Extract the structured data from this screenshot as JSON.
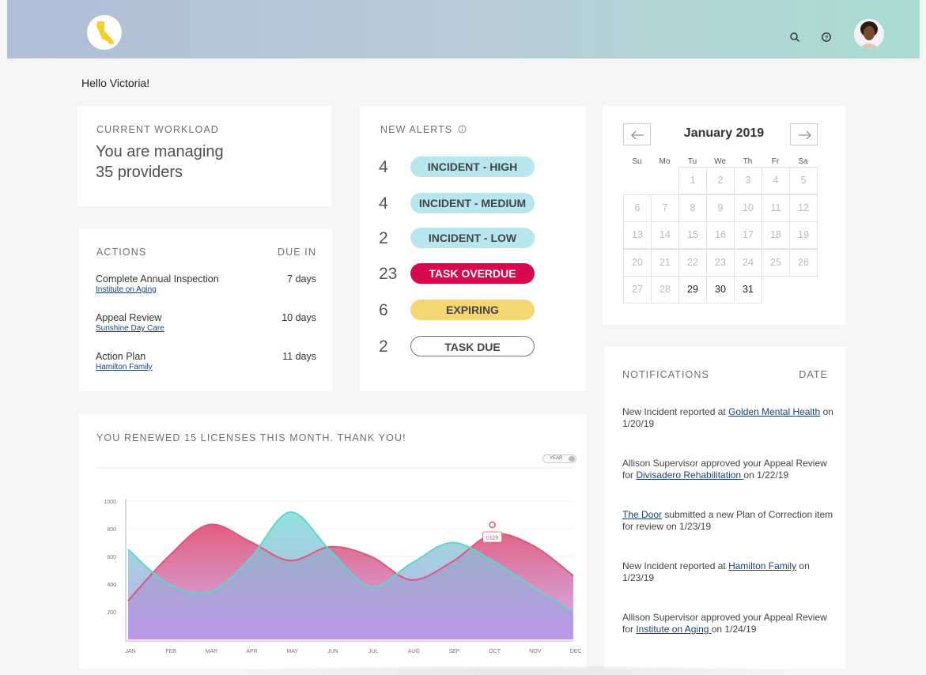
{
  "header": {
    "logo_icon": "california-state-icon",
    "search_icon": "search-icon",
    "help_icon": "help-circle-icon",
    "avatar_icon": "user-avatar"
  },
  "greeting": "Hello Victoria!",
  "workload": {
    "caption": "CURRENT WORKLOAD",
    "line1": "You are managing",
    "line2": "35 providers"
  },
  "actions": {
    "caption": "ACTIONS",
    "due_caption": "DUE IN",
    "items": [
      {
        "name": "Complete Annual Inspection",
        "provider": "Institute on Aging",
        "due": "7 days"
      },
      {
        "name": "Appeal Review",
        "provider": "Sunshine Day Care",
        "due": "10 days"
      },
      {
        "name": "Action Plan",
        "provider": "Hamilton Family",
        "due": "11 days"
      }
    ]
  },
  "alerts": {
    "caption": "NEW ALERTS",
    "info_icon": "info-icon",
    "items": [
      {
        "count": "4",
        "label": "INCIDENT - HIGH",
        "color": "#b7e6ee",
        "text_color": "#444444"
      },
      {
        "count": "4",
        "label": "INCIDENT - MEDIUM",
        "color": "#b7e6ee",
        "text_color": "#444444"
      },
      {
        "count": "2",
        "label": "INCIDENT - LOW",
        "color": "#b7e6ee",
        "text_color": "#444444"
      },
      {
        "count": "23",
        "label": "TASK OVERDUE",
        "color": "#d8084f",
        "text_color": "#ffffff"
      },
      {
        "count": "6",
        "label": "EXPIRING",
        "color": "#f6d670",
        "text_color": "#444444"
      },
      {
        "count": "2",
        "label": "TASK DUE",
        "color": "#ffffff",
        "text_color": "#444444"
      }
    ]
  },
  "calendar": {
    "title": "January 2019",
    "prev_icon": "arrow-left-icon",
    "next_icon": "arrow-right-icon",
    "weekdays": [
      "Su",
      "Mo",
      "Tu",
      "We",
      "Th",
      "Fr",
      "Sa"
    ],
    "first_weekday": 2,
    "days_in_month": 31,
    "active_days": [
      29,
      30,
      31
    ]
  },
  "notifications": {
    "caption": "NOTIFICATIONS",
    "date_caption": "DATE",
    "items": [
      {
        "before": "New Incident reported at ",
        "link": "Golden Mental Health",
        "after": " on 1/20/19"
      },
      {
        "before": "Allison Supervisor approved your Appeal Review for ",
        "link": "Divisadero Rehabilitation ",
        "after": "on 1/22/19"
      },
      {
        "before": "",
        "link": "The Door",
        "after": " submitted a new Plan of Correction item for review on 1/23/19"
      },
      {
        "before": "New Incident reported at ",
        "link": "Hamilton Family",
        "after": " on 1/23/19"
      },
      {
        "before": "Allison Supervisor approved your Appeal Review for ",
        "link": "Institute on Aging ",
        "after": "on 1/24/19"
      }
    ]
  },
  "renewals": {
    "caption": "YOU RENEWED 15 LICENSES THIS MONTH. THANK YOU!",
    "toggle_label": "YEAR"
  },
  "chart_data": {
    "type": "area",
    "categories": [
      "JAN",
      "FEB",
      "MAR",
      "APR",
      "MAY",
      "JUN",
      "JUL",
      "AUG",
      "SEP",
      "OCT",
      "NOV",
      "DEC"
    ],
    "ylim": [
      0,
      1000
    ],
    "yticks": [
      200,
      400,
      600,
      800,
      1000
    ],
    "series": [
      {
        "color": "#e0567b",
        "values": [
          280,
          600,
          830,
          710,
          570,
          670,
          600,
          430,
          560,
          760,
          680,
          460
        ]
      },
      {
        "color": "#5fd6cc",
        "values": [
          650,
          400,
          340,
          580,
          920,
          640,
          380,
          550,
          700,
          570,
          380,
          200
        ]
      }
    ],
    "tooltip": {
      "category": "OCT",
      "label": "0129"
    }
  }
}
